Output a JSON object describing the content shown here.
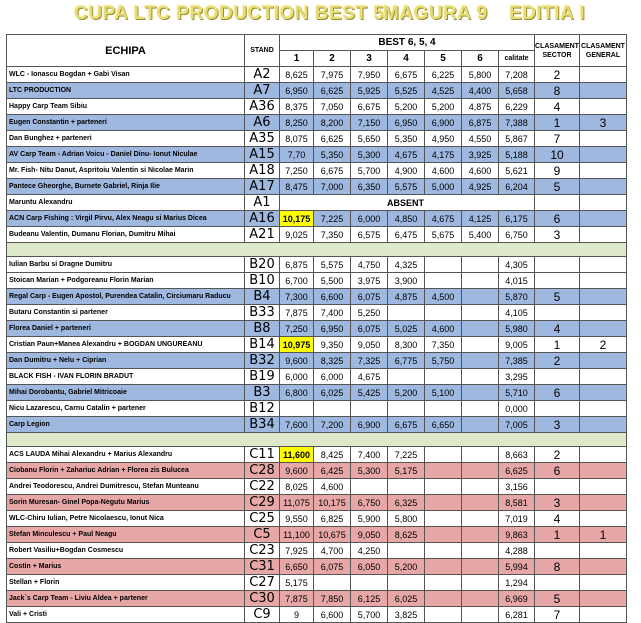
{
  "title": {
    "left": "CUPA LTC PRODUCTION BEST 5",
    "middle": "MAGURA 9",
    "right": "EDITIA I"
  },
  "header": {
    "echipa": "ECHIPA",
    "stand": "STAND",
    "best": "BEST 6, 5, 4",
    "rounds": [
      "1",
      "2",
      "3",
      "4",
      "5",
      "6"
    ],
    "calitate": "calitate",
    "sector": "CLASAMENT SECTOR",
    "general": "CLASAMENT GENERAL"
  },
  "colors": {
    "blue_row": "#9fb8e0",
    "red_row": "#e7a7a7",
    "separator": "#dde9c8",
    "highlight": "#ffff00"
  },
  "groups": [
    {
      "rows": [
        {
          "team": "WLC - Ionascu Bogdan + Gabi Visan",
          "stand": "A2",
          "s": [
            "8,625",
            "7,975",
            "7,950",
            "6,675",
            "6,225",
            "5,800"
          ],
          "cal": "7,208",
          "sector": "2",
          "general": "",
          "style": "white"
        },
        {
          "team": "LTC PRODUCTION",
          "stand": "A7",
          "s": [
            "6,950",
            "6,625",
            "5,925",
            "5,525",
            "4,525",
            "4,400"
          ],
          "cal": "5,658",
          "sector": "8",
          "general": "",
          "style": "blue"
        },
        {
          "team": "Happy Carp Team Sibiu",
          "stand": "A36",
          "s": [
            "8,375",
            "7,050",
            "6,675",
            "5,200",
            "5,200",
            "4,875"
          ],
          "cal": "6,229",
          "sector": "4",
          "general": "",
          "style": "white"
        },
        {
          "team": "Eugen Constantin + parteneri",
          "stand": "A6",
          "s": [
            "8,250",
            "8,200",
            "7,150",
            "6,950",
            "6,900",
            "6,875"
          ],
          "cal": "7,388",
          "sector": "1",
          "general": "3",
          "style": "blue"
        },
        {
          "team": "Dan Bunghez + parteneri",
          "stand": "A35",
          "s": [
            "8,075",
            "6,625",
            "5,650",
            "5,350",
            "4,950",
            "4,550"
          ],
          "cal": "5,867",
          "sector": "7",
          "general": "",
          "style": "white"
        },
        {
          "team": "AV Carp Team - Adrian Voicu - Daniel Dinu- Ionut Niculae",
          "stand": "A15",
          "s": [
            "7,70",
            "5,350",
            "5,300",
            "4,675",
            "4,175",
            "3,925"
          ],
          "cal": "5,188",
          "sector": "10",
          "general": "",
          "style": "blue"
        },
        {
          "team": "Mr. Fish- Nitu Danut, Aspritoiu Valentin si Nicolae Marin",
          "stand": "A18",
          "s": [
            "7,250",
            "6,675",
            "5,700",
            "4,900",
            "4,600",
            "4,600"
          ],
          "cal": "5,621",
          "sector": "9",
          "general": "",
          "style": "white"
        },
        {
          "team": "Pantece Gheorghe, Burnete Gabriel, Rinja Ilie",
          "stand": "A17",
          "s": [
            "8,475",
            "7,000",
            "6,350",
            "5,575",
            "5,000",
            "4,925"
          ],
          "cal": "6,204",
          "sector": "5",
          "general": "",
          "style": "blue"
        },
        {
          "team": "Maruntu Alexandru",
          "stand": "A1",
          "absent": "ABSENT",
          "style": "white"
        },
        {
          "team": "ACN Carp Fishing : Virgil Pirvu, Alex Neagu si Marius Dicea",
          "stand": "A16",
          "s": [
            "10,175",
            "7,225",
            "6,000",
            "4,850",
            "4,675",
            "4,125"
          ],
          "cal": "6,175",
          "sector": "6",
          "general": "",
          "style": "blue",
          "hl": 0
        },
        {
          "team": "Budeanu Valentin, Dumanu Florian, Dumitru Mihai",
          "stand": "A21",
          "s": [
            "9,025",
            "7,350",
            "6,575",
            "6,475",
            "5,675",
            "5,400"
          ],
          "cal": "6,750",
          "sector": "3",
          "general": "",
          "style": "white"
        }
      ]
    },
    {
      "rows": [
        {
          "team": "Iulian Barbu si Dragne Dumitru",
          "stand": "B20",
          "s": [
            "6,875",
            "5,575",
            "4,750",
            "4,325",
            "",
            ""
          ],
          "cal": "4,305",
          "sector": "",
          "general": "",
          "style": "white"
        },
        {
          "team": "Stoican Marian + Podgoreanu Florin Marian",
          "stand": "B10",
          "s": [
            "6,700",
            "5,500",
            "3,975",
            "3,900",
            "",
            ""
          ],
          "cal": "4,015",
          "sector": "",
          "general": "",
          "style": "white"
        },
        {
          "team": "Regal Carp - Eugen Apostol, Purendea Catalin, Circiumaru Raducu",
          "stand": "B4",
          "s": [
            "7,300",
            "6,600",
            "6,075",
            "4,875",
            "4,500",
            ""
          ],
          "cal": "5,870",
          "sector": "5",
          "general": "",
          "style": "blue"
        },
        {
          "team": "Butaru Constantin si partener",
          "stand": "B33",
          "s": [
            "7,875",
            "7,400",
            "5,250",
            "",
            "",
            ""
          ],
          "cal": "4,105",
          "sector": "",
          "general": "",
          "style": "white"
        },
        {
          "team": "Florea Daniel + parteneri",
          "stand": "B8",
          "s": [
            "7,250",
            "6,950",
            "6,075",
            "5,025",
            "4,600",
            ""
          ],
          "cal": "5,980",
          "sector": "4",
          "general": "",
          "style": "blue"
        },
        {
          "team": "Cristian Paun+Manea Alexandru + BOGDAN UNGUREANU",
          "stand": "B14",
          "s": [
            "10,975",
            "9,350",
            "9,050",
            "8,300",
            "7,350",
            ""
          ],
          "cal": "9,005",
          "sector": "1",
          "general": "2",
          "style": "white",
          "hl": 0
        },
        {
          "team": "Dan Dumitru + Nelu + Ciprian",
          "stand": "B32",
          "s": [
            "9,600",
            "8,325",
            "7,325",
            "6,775",
            "5,750",
            ""
          ],
          "cal": "7,385",
          "sector": "2",
          "general": "",
          "style": "blue"
        },
        {
          "team": "BLACK FISH - IVAN FLORIN BRADUT",
          "stand": "B19",
          "s": [
            "6,000",
            "6,000",
            "4,675",
            "",
            "",
            ""
          ],
          "cal": "3,295",
          "sector": "",
          "general": "",
          "style": "white"
        },
        {
          "team": "Mihai Dorobantu, Gabriel Mitricoaie",
          "stand": "B3",
          "s": [
            "6,800",
            "6,025",
            "5,425",
            "5,200",
            "5,100",
            ""
          ],
          "cal": "5,710",
          "sector": "6",
          "general": "",
          "style": "blue"
        },
        {
          "team": "Nicu Lazarescu, Carnu Catalin + partener",
          "stand": "B12",
          "s": [
            "",
            "",
            "",
            "",
            "",
            ""
          ],
          "cal": "0,000",
          "sector": "",
          "general": "",
          "style": "white"
        },
        {
          "team": "Carp Legion",
          "stand": "B34",
          "s": [
            "7,600",
            "7,200",
            "6,900",
            "6,675",
            "6,650",
            ""
          ],
          "cal": "7,005",
          "sector": "3",
          "general": "",
          "style": "blue"
        }
      ]
    },
    {
      "rows": [
        {
          "team": "ACS LAUDA Mihai Alexandru + Marius Alexandru",
          "stand": "C11",
          "s": [
            "11,600",
            "8,425",
            "7,400",
            "7,225",
            "",
            ""
          ],
          "cal": "8,663",
          "sector": "2",
          "general": "",
          "style": "white",
          "hl": 0
        },
        {
          "team": "Ciobanu Florin + Zahariuc Adrian + Florea zis Bulucea",
          "stand": "C28",
          "s": [
            "9,600",
            "6,425",
            "5,300",
            "5,175",
            "",
            ""
          ],
          "cal": "6,625",
          "sector": "6",
          "general": "",
          "style": "red"
        },
        {
          "team": "Andrei Teodorescu, Andrei Dumitrescu, Stefan Munteanu",
          "stand": "C22",
          "s": [
            "8,025",
            "4,600",
            "",
            "",
            "",
            ""
          ],
          "cal": "3,156",
          "sector": "",
          "general": "",
          "style": "white"
        },
        {
          "team": "Sorin Muresan- Ginel Popa-Negutu Marius",
          "stand": "C29",
          "s": [
            "11,075",
            "10,175",
            "6,750",
            "6,325",
            "",
            ""
          ],
          "cal": "8,581",
          "sector": "3",
          "general": "",
          "style": "red"
        },
        {
          "team": "WLC-Chiru Iulian, Petre Nicolaescu, Ionut Nica",
          "stand": "C25",
          "s": [
            "9,550",
            "6,825",
            "5,900",
            "5,800",
            "",
            ""
          ],
          "cal": "7,019",
          "sector": "4",
          "general": "",
          "style": "white"
        },
        {
          "team": "Stefan Minculescu + Paul Neagu",
          "stand": "C5",
          "s": [
            "11,100",
            "10,675",
            "9,050",
            "8,625",
            "",
            ""
          ],
          "cal": "9,863",
          "sector": "1",
          "general": "1",
          "style": "red"
        },
        {
          "team": "Robert Vasiliu+Bogdan Cosmescu",
          "stand": "C23",
          "s": [
            "7,925",
            "4,700",
            "4,250",
            "",
            "",
            ""
          ],
          "cal": "4,288",
          "sector": "",
          "general": "",
          "style": "white"
        },
        {
          "team": "Costin + Marius",
          "stand": "C31",
          "s": [
            "6,650",
            "6,075",
            "6,050",
            "5,200",
            "",
            ""
          ],
          "cal": "5,994",
          "sector": "8",
          "general": "",
          "style": "red"
        },
        {
          "team": "Stellan + Florin",
          "stand": "C27",
          "s": [
            "5,175",
            "",
            "",
            "",
            "",
            ""
          ],
          "cal": "1,294",
          "sector": "",
          "general": "",
          "style": "white"
        },
        {
          "team": "Jack`s Carp Team - Liviu Aldea + partener",
          "stand": "C30",
          "s": [
            "7,875",
            "7,850",
            "6,125",
            "6,025",
            "",
            ""
          ],
          "cal": "6,969",
          "sector": "5",
          "general": "",
          "style": "red"
        },
        {
          "team": "Vali + Cristi",
          "stand": "C9",
          "s": [
            "9",
            "6,600",
            "5,700",
            "3,825",
            "",
            ""
          ],
          "cal": "6,281",
          "sector": "7",
          "general": "",
          "style": "white"
        }
      ]
    }
  ]
}
